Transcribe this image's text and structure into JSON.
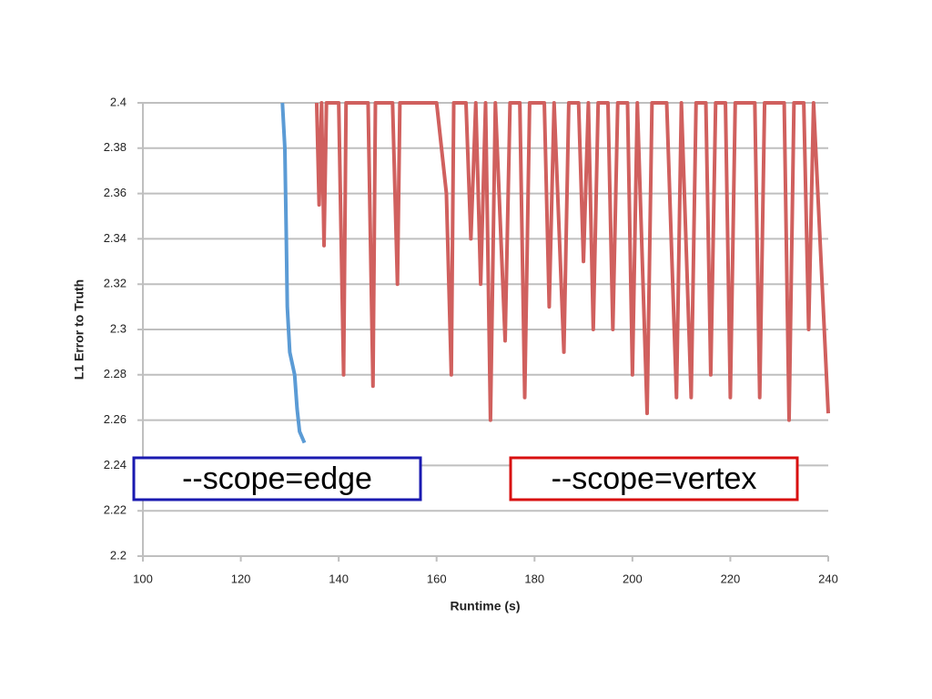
{
  "chart_data": {
    "type": "line",
    "x_label": "Runtime (s)",
    "y_label": "L1 Error to Truth",
    "xlim": [
      100,
      240
    ],
    "xticks": [
      100,
      120,
      140,
      160,
      180,
      200,
      220,
      240
    ],
    "ylim": [
      2.2,
      2.4
    ],
    "yticks": [
      2.2,
      2.22,
      2.24,
      2.26,
      2.28,
      2.3,
      2.32,
      2.34,
      2.36,
      2.38,
      2.4
    ],
    "grid": true,
    "series": [
      {
        "color": "#5b9bd5",
        "x": [
          128.5,
          129,
          129.3,
          129.5,
          130,
          131,
          131.5,
          132,
          133
        ],
        "values": [
          2.4,
          2.38,
          2.34,
          2.31,
          2.29,
          2.28,
          2.265,
          2.255,
          2.25
        ]
      },
      {
        "color": "#d0605e",
        "x": [
          135.5,
          136,
          136.5,
          137,
          137.5,
          140,
          141,
          141.5,
          146,
          147,
          147.5,
          151,
          152,
          152.5,
          160,
          162,
          163,
          163.5,
          166,
          167,
          168,
          169,
          170,
          171,
          172,
          174,
          175,
          177,
          178,
          179,
          182,
          183,
          184,
          186,
          187,
          189,
          190,
          191,
          192,
          193,
          195,
          196,
          197,
          199,
          200,
          201,
          203,
          204,
          207,
          209,
          210,
          212,
          213,
          215,
          216,
          217,
          219,
          220,
          221,
          225,
          226,
          227,
          231,
          232,
          233,
          235,
          236,
          237,
          240
        ],
        "values": [
          2.4,
          2.355,
          2.4,
          2.337,
          2.4,
          2.4,
          2.28,
          2.4,
          2.4,
          2.275,
          2.4,
          2.4,
          2.32,
          2.4,
          2.4,
          2.36,
          2.28,
          2.4,
          2.4,
          2.34,
          2.4,
          2.32,
          2.4,
          2.26,
          2.4,
          2.295,
          2.4,
          2.4,
          2.27,
          2.4,
          2.4,
          2.31,
          2.4,
          2.29,
          2.4,
          2.4,
          2.33,
          2.4,
          2.3,
          2.4,
          2.4,
          2.3,
          2.4,
          2.4,
          2.28,
          2.4,
          2.263,
          2.4,
          2.4,
          2.27,
          2.4,
          2.27,
          2.4,
          2.4,
          2.28,
          2.4,
          2.4,
          2.27,
          2.4,
          2.4,
          2.27,
          2.4,
          2.4,
          2.26,
          2.4,
          2.4,
          2.3,
          2.4,
          2.263
        ]
      }
    ],
    "annotations": [
      {
        "text": "--scope=edge",
        "color": "#1a1ab0"
      },
      {
        "text": "--scope=vertex",
        "color": "#d81010"
      }
    ]
  }
}
